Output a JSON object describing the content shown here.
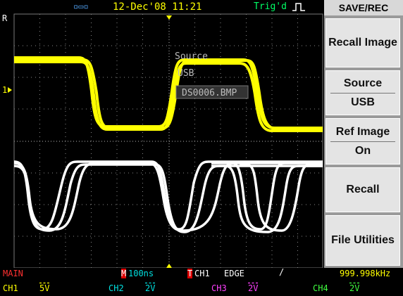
{
  "status_bar": {
    "date_time": "12-Dec'08 11:21",
    "trigger_status": "Trig'd"
  },
  "screen": {
    "ref_marker": "R",
    "channel_marker": "1",
    "overlay": {
      "source_label": "Source",
      "source_value": "USB",
      "file_name": "DS0006.BMP"
    }
  },
  "menu": {
    "title": "SAVE/REC",
    "items": [
      {
        "label": "Recall Image"
      },
      {
        "label": "Source",
        "value": "USB"
      },
      {
        "label": "Ref Image",
        "value": "On"
      },
      {
        "label": "Recall"
      },
      {
        "label": "File Utilities"
      }
    ]
  },
  "bottom_bar": {
    "mode": "MAIN",
    "timebase_marker": "M",
    "timebase": "100ns",
    "trigger_marker": "T",
    "trigger_source": "CH1",
    "trigger_type": "EDGE",
    "frequency": "999.998kHz",
    "channels": [
      {
        "name": "CH1",
        "scale": "5V"
      },
      {
        "name": "CH2",
        "scale": "2V"
      },
      {
        "name": "CH3",
        "scale": "2V"
      },
      {
        "name": "CH4",
        "scale": "2V"
      }
    ]
  }
}
